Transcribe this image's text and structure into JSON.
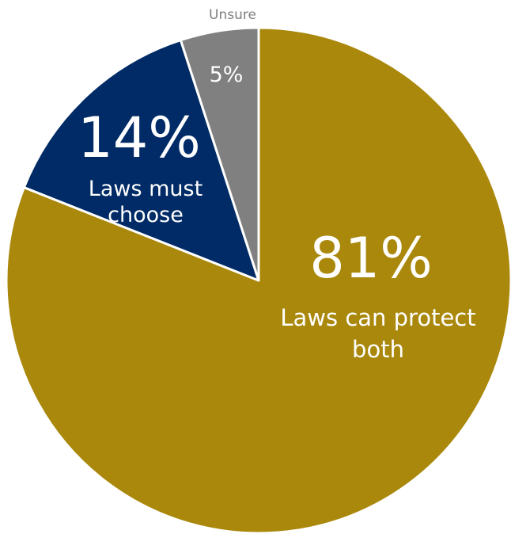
{
  "chart_data": {
    "type": "pie",
    "slices": [
      {
        "value": 81,
        "percent_label": "81%",
        "label_lines": [
          "Laws can protect",
          "both"
        ],
        "color": "#AA880C"
      },
      {
        "value": 14,
        "percent_label": "14%",
        "label_lines": [
          "Laws must",
          "choose"
        ],
        "color": "#002B66"
      },
      {
        "value": 5,
        "percent_label": "5%",
        "label_lines": [
          "Unsure"
        ],
        "color": "#808080"
      }
    ],
    "start": "12 o'clock",
    "direction": "clockwise",
    "slice_border_color": "#FFFFFF"
  }
}
